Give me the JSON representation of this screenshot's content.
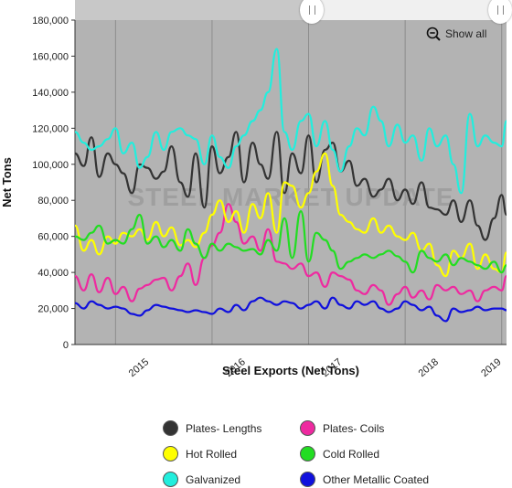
{
  "show_all_label": "Show all",
  "chart_data": {
    "type": "line",
    "xlabel": "Steel Exports (Net Tons)",
    "ylabel": "Net Tons",
    "watermark": "STEEL MARKET UPDATE",
    "ylim": [
      0,
      180000
    ],
    "xlim": [
      2014.58,
      2019.05
    ],
    "y_ticks": [
      "0",
      "20,000",
      "40,000",
      "60,000",
      "80,000",
      "100,000",
      "120,000",
      "140,000",
      "160,000",
      "180,000"
    ],
    "x_ticks": [
      "2015",
      "2016",
      "2017",
      "2018",
      "2019"
    ],
    "grid": "vertical lines at year boundaries",
    "x": [
      2014.58,
      2014.67,
      2014.75,
      2014.83,
      2014.92,
      2015.0,
      2015.08,
      2015.17,
      2015.25,
      2015.33,
      2015.42,
      2015.5,
      2015.58,
      2015.67,
      2015.75,
      2015.83,
      2015.92,
      2016.0,
      2016.08,
      2016.17,
      2016.25,
      2016.33,
      2016.42,
      2016.5,
      2016.58,
      2016.67,
      2016.75,
      2016.83,
      2016.92,
      2017.0,
      2017.08,
      2017.17,
      2017.25,
      2017.33,
      2017.42,
      2017.5,
      2017.58,
      2017.67,
      2017.75,
      2017.83,
      2017.92,
      2018.0,
      2018.08,
      2018.17,
      2018.25,
      2018.33,
      2018.42,
      2018.5,
      2018.58,
      2018.67,
      2018.75,
      2018.83,
      2018.92,
      2019.0,
      2019.05
    ],
    "series": [
      {
        "name": "Plates- Lengths",
        "color": "#333333",
        "values": [
          106000,
          99000,
          115000,
          93000,
          106000,
          100000,
          95000,
          84000,
          100000,
          98000,
          92000,
          96000,
          110000,
          90000,
          82000,
          106000,
          76000,
          110000,
          95000,
          104000,
          118000,
          90000,
          112000,
          100000,
          92000,
          118000,
          84000,
          106000,
          95000,
          116000,
          90000,
          108000,
          112000,
          96000,
          102000,
          88000,
          92000,
          82000,
          86000,
          92000,
          80000,
          86000,
          78000,
          90000,
          76000,
          75000,
          72000,
          80000,
          68000,
          80000,
          66000,
          58000,
          70000,
          83000,
          72000
        ]
      },
      {
        "name": "Plates- Coils",
        "color": "#ee2aa0",
        "values": [
          38000,
          30000,
          39000,
          29000,
          37000,
          28000,
          32000,
          24000,
          31000,
          33000,
          36000,
          37000,
          30000,
          38000,
          45000,
          33000,
          48000,
          55000,
          62000,
          78000,
          68000,
          56000,
          60000,
          52000,
          64000,
          46000,
          45000,
          42000,
          45000,
          38000,
          40000,
          32000,
          40000,
          38000,
          36000,
          30000,
          28000,
          33000,
          30000,
          22000,
          28000,
          32000,
          26000,
          30000,
          25000,
          33000,
          30000,
          32000,
          28000,
          30000,
          24000,
          30000,
          32000,
          30000,
          38000
        ]
      },
      {
        "name": "Hot Rolled",
        "color": "#ffff00",
        "values": [
          66000,
          52000,
          58000,
          50000,
          60000,
          56000,
          62000,
          60000,
          64000,
          58000,
          68000,
          60000,
          65000,
          55000,
          58000,
          54000,
          62000,
          72000,
          80000,
          68000,
          74000,
          62000,
          78000,
          70000,
          84000,
          62000,
          90000,
          88000,
          76000,
          84000,
          96000,
          106000,
          88000,
          72000,
          68000,
          64000,
          62000,
          70000,
          62000,
          66000,
          60000,
          58000,
          62000,
          52000,
          56000,
          44000,
          38000,
          52000,
          48000,
          56000,
          42000,
          50000,
          42000,
          40000,
          51000
        ]
      },
      {
        "name": "Cold Rolled",
        "color": "#22dd22",
        "values": [
          60000,
          58000,
          62000,
          66000,
          56000,
          58000,
          56000,
          64000,
          72000,
          56000,
          60000,
          54000,
          58000,
          52000,
          64000,
          56000,
          48000,
          56000,
          52000,
          56000,
          54000,
          52000,
          53000,
          50000,
          58000,
          52000,
          70000,
          48000,
          74000,
          46000,
          62000,
          58000,
          52000,
          42000,
          46000,
          48000,
          50000,
          48000,
          50000,
          52000,
          49000,
          46000,
          40000,
          52000,
          48000,
          46000,
          50000,
          44000,
          48000,
          46000,
          44000,
          42000,
          46000,
          40000,
          44000
        ]
      },
      {
        "name": "Galvanized",
        "color": "#22eedd",
        "values": [
          118000,
          112000,
          108000,
          110000,
          114000,
          120000,
          106000,
          112000,
          98000,
          104000,
          118000,
          108000,
          118000,
          120000,
          116000,
          114000,
          100000,
          116000,
          104000,
          98000,
          110000,
          116000,
          124000,
          130000,
          140000,
          164000,
          118000,
          108000,
          124000,
          128000,
          110000,
          124000,
          108000,
          96000,
          110000,
          120000,
          116000,
          132000,
          124000,
          110000,
          122000,
          112000,
          116000,
          102000,
          120000,
          110000,
          116000,
          100000,
          84000,
          128000,
          110000,
          116000,
          112000,
          110000,
          124000
        ]
      },
      {
        "name": "Other Metallic Coated",
        "color": "#1010dd",
        "values": [
          23000,
          20000,
          24000,
          22000,
          20000,
          21000,
          20000,
          17000,
          16000,
          19000,
          22000,
          21000,
          20000,
          19000,
          18000,
          19000,
          18000,
          17000,
          20000,
          18000,
          22000,
          19000,
          24000,
          26000,
          24000,
          22000,
          24000,
          23000,
          20000,
          22000,
          24000,
          20000,
          26000,
          22000,
          20000,
          24000,
          22000,
          24000,
          20000,
          18000,
          20000,
          24000,
          22000,
          19000,
          21000,
          16000,
          13000,
          20000,
          18000,
          19000,
          21000,
          19000,
          20000,
          20000,
          19000
        ]
      }
    ]
  }
}
